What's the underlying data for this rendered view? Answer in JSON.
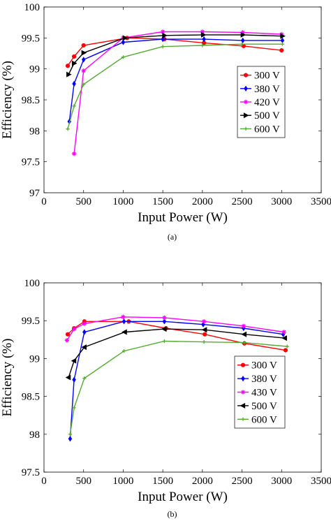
{
  "chart_data": [
    {
      "type": "line",
      "panel_label": "(a)",
      "xlabel": "Input Power (W)",
      "ylabel": "Efficiency (%)",
      "xlim": [
        0,
        3500
      ],
      "ylim": [
        97,
        100
      ],
      "xticks": [
        "0",
        "500",
        "1000",
        "1500",
        "2000",
        "2500",
        "3000",
        "3500"
      ],
      "yticks": [
        "97",
        "97.5",
        "98",
        "98.5",
        "99",
        "99.5",
        "100"
      ],
      "grid": false,
      "legend_position": "right",
      "series": [
        {
          "name": "300 V",
          "color": "#ff0000",
          "marker": "circle",
          "x": [
            300,
            380,
            500,
            1050,
            1520,
            2020,
            2520,
            3000
          ],
          "y": [
            99.05,
            99.2,
            99.38,
            99.5,
            99.48,
            99.42,
            99.37,
            99.3
          ]
        },
        {
          "name": "380 V",
          "color": "#0000ff",
          "marker": "diamond",
          "x": [
            320,
            380,
            500,
            1000,
            1500,
            2020,
            2510,
            3010
          ],
          "y": [
            98.15,
            98.76,
            99.15,
            99.43,
            99.48,
            99.48,
            99.46,
            99.46
          ]
        },
        {
          "name": "420 V",
          "color": "#ff00ff",
          "marker": "star",
          "x": [
            380,
            500,
            1000,
            1500,
            2000,
            2510,
            3000
          ],
          "y": [
            97.63,
            98.97,
            99.5,
            99.6,
            99.6,
            99.59,
            99.56
          ]
        },
        {
          "name": "500 V",
          "color": "#000000",
          "marker": "triangle-right",
          "x": [
            310,
            380,
            500,
            1020,
            1520,
            2010,
            2510,
            3010
          ],
          "y": [
            98.91,
            99.09,
            99.26,
            99.5,
            99.54,
            99.55,
            99.55,
            99.53
          ]
        },
        {
          "name": "600 V",
          "color": "#55aa33",
          "marker": "plus",
          "x": [
            300,
            380,
            500,
            1000,
            1500,
            2000,
            2500,
            3010
          ],
          "y": [
            98.03,
            98.4,
            98.75,
            99.19,
            99.36,
            99.38,
            99.4,
            99.4
          ]
        }
      ]
    },
    {
      "type": "line",
      "panel_label": "(b)",
      "xlabel": "Input Power (W)",
      "ylabel": "Efficiency (%)",
      "xlim": [
        0,
        3500
      ],
      "ylim": [
        97.5,
        100
      ],
      "xticks": [
        "0",
        "500",
        "1000",
        "1500",
        "2000",
        "2500",
        "3000",
        "3500"
      ],
      "yticks": [
        "97.5",
        "98",
        "98.5",
        "99",
        "99.5",
        "100"
      ],
      "grid": false,
      "legend_position": "right",
      "series": [
        {
          "name": "300 V",
          "color": "#ff0000",
          "marker": "circle",
          "x": [
            300,
            380,
            510,
            1070,
            1540,
            2030,
            2530,
            3050
          ],
          "y": [
            99.32,
            99.4,
            99.49,
            99.49,
            99.4,
            99.32,
            99.2,
            99.11
          ]
        },
        {
          "name": "380 V",
          "color": "#0000ff",
          "marker": "diamond",
          "x": [
            330,
            380,
            510,
            1010,
            1520,
            2010,
            2520,
            3020
          ],
          "y": [
            97.94,
            98.72,
            99.35,
            99.49,
            99.49,
            99.45,
            99.4,
            99.32
          ]
        },
        {
          "name": "430 V",
          "color": "#ff00ff",
          "marker": "star",
          "x": [
            290,
            380,
            510,
            1000,
            1520,
            2020,
            2520,
            3030
          ],
          "y": [
            99.24,
            99.39,
            99.46,
            99.55,
            99.54,
            99.49,
            99.43,
            99.35
          ]
        },
        {
          "name": "500 V",
          "color": "#000000",
          "marker": "triangle-left",
          "x": [
            310,
            380,
            510,
            1020,
            1520,
            2030,
            2530,
            3040
          ],
          "y": [
            98.75,
            98.97,
            99.15,
            99.35,
            99.39,
            99.38,
            99.32,
            99.27
          ]
        },
        {
          "name": "600 V",
          "color": "#55aa33",
          "marker": "plus",
          "x": [
            330,
            380,
            510,
            1010,
            1520,
            2020,
            2530,
            3070
          ],
          "y": [
            98.0,
            98.35,
            98.74,
            99.1,
            99.23,
            99.22,
            99.21,
            99.16
          ]
        }
      ]
    }
  ]
}
